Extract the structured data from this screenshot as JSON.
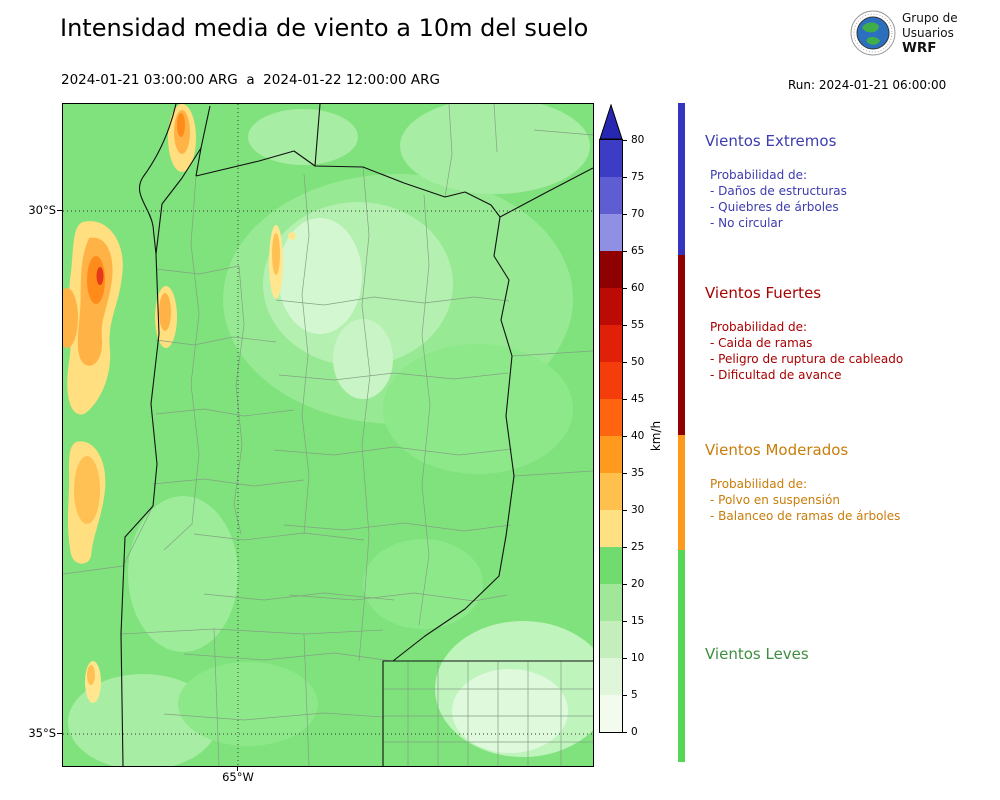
{
  "header": {
    "title": "Intensidad media de viento a 10m del suelo",
    "date_range": "2024-01-21 03:00:00 ARG  a  2024-01-22 12:00:00 ARG",
    "run_label": "Run: 2024-01-21 06:00:00",
    "logo": {
      "line1": "Grupo de",
      "line2": "Usuarios",
      "line3": "WRF"
    }
  },
  "map": {
    "yticks": [
      "30°S",
      "35°S"
    ],
    "xticks": [
      "65°W"
    ]
  },
  "colorbar": {
    "unit": "km/h",
    "tick_values": [
      0,
      5,
      10,
      15,
      20,
      25,
      30,
      35,
      40,
      45,
      50,
      55,
      60,
      65,
      70,
      75,
      80
    ],
    "segments": [
      {
        "range": [
          0,
          5
        ],
        "color": "#f3fbef"
      },
      {
        "range": [
          5,
          10
        ],
        "color": "#e0f6da"
      },
      {
        "range": [
          10,
          15
        ],
        "color": "#c4efbc"
      },
      {
        "range": [
          15,
          20
        ],
        "color": "#a0e79a"
      },
      {
        "range": [
          20,
          25
        ],
        "color": "#70dc6e"
      },
      {
        "range": [
          25,
          30
        ],
        "color": "#ffe082"
      },
      {
        "range": [
          30,
          35
        ],
        "color": "#ffc04d"
      },
      {
        "range": [
          35,
          40
        ],
        "color": "#ff9a1f"
      },
      {
        "range": [
          40,
          45
        ],
        "color": "#ff6410"
      },
      {
        "range": [
          45,
          50
        ],
        "color": "#f53d0c"
      },
      {
        "range": [
          50,
          55
        ],
        "color": "#e02008"
      },
      {
        "range": [
          55,
          60
        ],
        "color": "#bc0a04"
      },
      {
        "range": [
          60,
          65
        ],
        "color": "#8f0000"
      },
      {
        "range": [
          65,
          70
        ],
        "color": "#8f8fe4"
      },
      {
        "range": [
          70,
          75
        ],
        "color": "#5e5ed2"
      },
      {
        "range": [
          75,
          80
        ],
        "color": "#3c3cc4"
      }
    ],
    "over_arrow_color": "#2727b2"
  },
  "legend": {
    "sections": [
      {
        "title": "Vientos Extremos",
        "text_color": "#3c3cae",
        "bar_color": "#3434bc",
        "intro": "Probabilidad de:",
        "items": [
          "- Daños de estructuras",
          "- Quiebres de árboles",
          "- No circular"
        ]
      },
      {
        "title": "Vientos Fuertes",
        "text_color": "#a80000",
        "bar_color": "#8f0000",
        "intro": "Probabilidad de:",
        "items": [
          "- Caida de ramas",
          "- Peligro de ruptura de cableado",
          "- Dificultad de avance"
        ]
      },
      {
        "title": "Vientos Moderados",
        "text_color": "#c87d0a",
        "bar_color": "#ff9a1f",
        "intro": "Probabilidad de:",
        "items": [
          "- Polvo en suspensión",
          "- Balanceo de ramas de árboles"
        ]
      },
      {
        "title": "Vientos Leves",
        "text_color": "#3e8e41",
        "bar_color": "#55d655",
        "intro": "",
        "items": []
      }
    ]
  },
  "chart_data": {
    "type": "heatmap",
    "title": "Intensidad media de viento a 10m del suelo",
    "colorbar_unit": "km/h",
    "colorbar_range": [
      0,
      80
    ],
    "colorbar_step": 5,
    "map_extent": {
      "lat_ticks": [
        "30°S",
        "35°S"
      ],
      "lon_ticks": [
        "65°W"
      ]
    },
    "categories": [
      {
        "label": "Vientos Leves",
        "range_kmh": [
          0,
          25
        ]
      },
      {
        "label": "Vientos Moderados",
        "range_kmh": [
          25,
          40
        ]
      },
      {
        "label": "Vientos Fuertes",
        "range_kmh": [
          40,
          65
        ]
      },
      {
        "label": "Vientos Extremos",
        "range_kmh": [
          65,
          80
        ]
      }
    ]
  }
}
